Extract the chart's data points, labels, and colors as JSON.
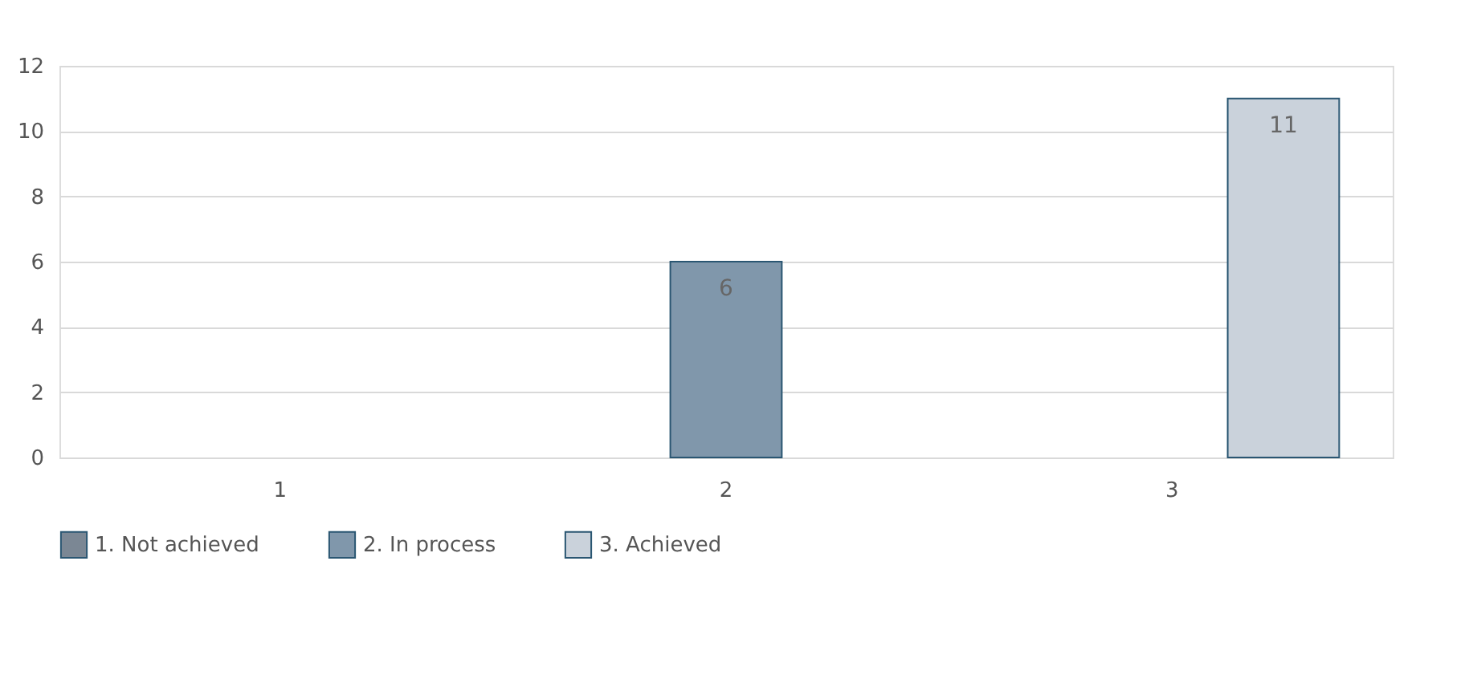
{
  "chart_data": {
    "type": "bar",
    "categories": [
      "1",
      "2",
      "3"
    ],
    "series": [
      {
        "name": "1. Not achieved",
        "color": "#7b8794",
        "values": [
          null,
          null,
          null
        ]
      },
      {
        "name": "2. In process",
        "color": "#8097ab",
        "values": [
          null,
          6,
          null
        ]
      },
      {
        "name": "3. Achieved",
        "color": "#cad2db",
        "values": [
          null,
          null,
          11
        ]
      }
    ],
    "ylim": [
      0,
      12
    ],
    "yticks": [
      0,
      2,
      4,
      6,
      8,
      10,
      12
    ],
    "grid": "y",
    "legend": "bottom",
    "data_labels": true
  }
}
